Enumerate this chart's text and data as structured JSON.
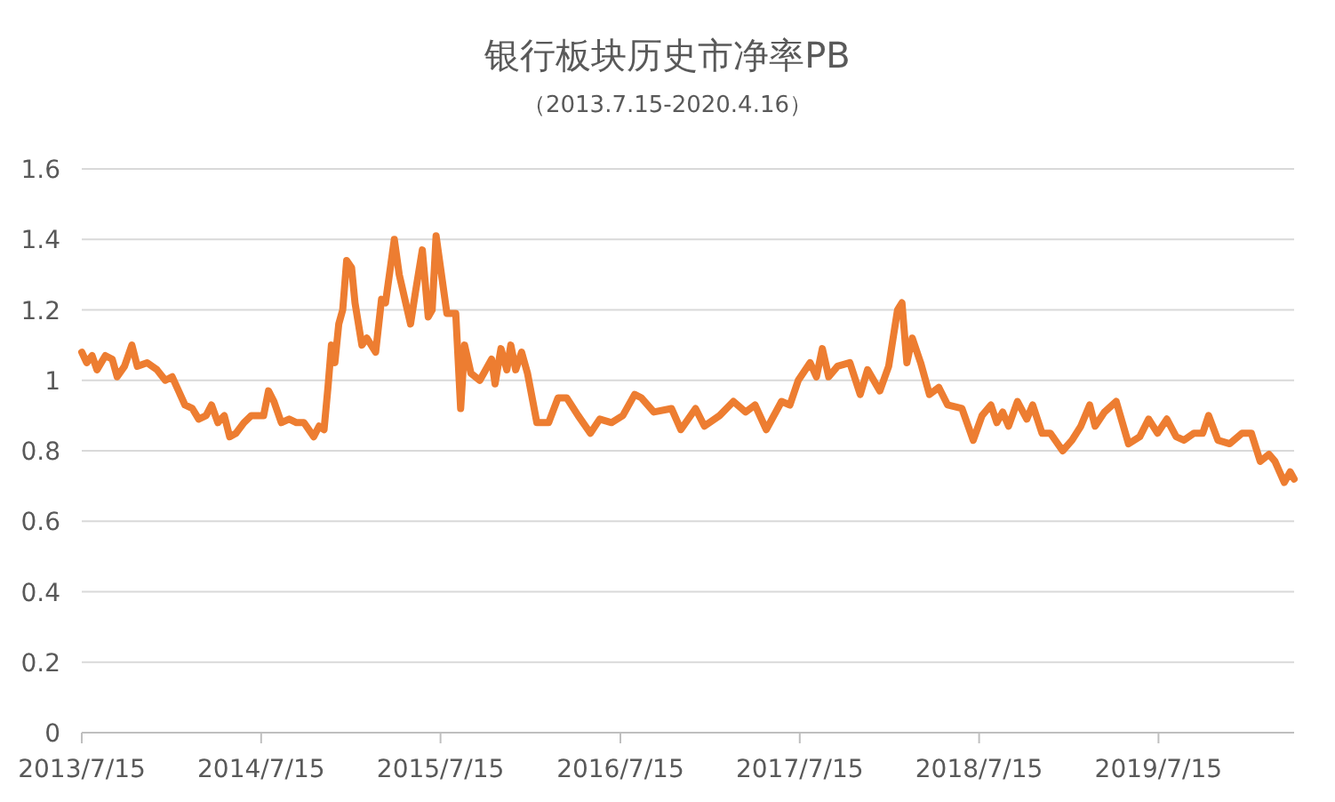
{
  "chart_data": {
    "type": "line",
    "title": "银行板块历史市净率PB",
    "subtitle": "（2013.7.15-2020.4.16）",
    "x": [
      "2013-07-15",
      "2013-07-25",
      "2013-08-05",
      "2013-08-15",
      "2013-09-01",
      "2013-09-15",
      "2013-09-25",
      "2013-10-10",
      "2013-10-25",
      "2013-11-05",
      "2013-11-25",
      "2013-12-15",
      "2014-01-01",
      "2014-01-15",
      "2014-01-28",
      "2014-02-10",
      "2014-02-25",
      "2014-03-10",
      "2014-03-25",
      "2014-04-05",
      "2014-04-18",
      "2014-05-01",
      "2014-05-12",
      "2014-05-25",
      "2014-06-10",
      "2014-06-25",
      "2014-07-20",
      "2014-07-30",
      "2014-08-10",
      "2014-08-25",
      "2014-09-10",
      "2014-09-25",
      "2014-10-10",
      "2014-10-30",
      "2014-11-10",
      "2014-11-20",
      "2014-11-28",
      "2014-12-05",
      "2014-12-12",
      "2014-12-20",
      "2014-12-28",
      "2015-01-05",
      "2015-01-15",
      "2015-01-22",
      "2015-02-05",
      "2015-02-15",
      "2015-03-05",
      "2015-03-17",
      "2015-03-25",
      "2015-04-12",
      "2015-04-22",
      "2015-05-15",
      "2015-05-25",
      "2015-06-08",
      "2015-06-20",
      "2015-06-28",
      "2015-07-06",
      "2015-07-28",
      "2015-08-15",
      "2015-08-25",
      "2015-09-02",
      "2015-09-15",
      "2015-10-03",
      "2015-10-27",
      "2015-11-03",
      "2015-11-15",
      "2015-11-27",
      "2015-12-05",
      "2015-12-15",
      "2015-12-27",
      "2016-01-08",
      "2016-01-27",
      "2016-02-20",
      "2016-03-10",
      "2016-03-28",
      "2016-04-20",
      "2016-05-15",
      "2016-06-03",
      "2016-06-27",
      "2016-07-20",
      "2016-08-13",
      "2016-08-27",
      "2016-09-21",
      "2016-10-27",
      "2016-11-15",
      "2016-12-15",
      "2017-01-02",
      "2017-02-02",
      "2017-03-02",
      "2017-03-27",
      "2017-04-15",
      "2017-05-08",
      "2017-06-08",
      "2017-06-25",
      "2017-07-12",
      "2017-08-05",
      "2017-08-18",
      "2017-08-30",
      "2017-09-12",
      "2017-09-30",
      "2017-10-25",
      "2017-11-15",
      "2017-11-30",
      "2017-12-25",
      "2018-01-12",
      "2018-01-30",
      "2018-02-08",
      "2018-02-18",
      "2018-03-01",
      "2018-03-18",
      "2018-04-05",
      "2018-04-24",
      "2018-05-12",
      "2018-06-10",
      "2018-07-03",
      "2018-07-21",
      "2018-08-08",
      "2018-08-20",
      "2018-09-01",
      "2018-09-13",
      "2018-10-01",
      "2018-10-20",
      "2018-11-01",
      "2018-11-20",
      "2018-12-07",
      "2019-01-01",
      "2019-01-20",
      "2019-02-07",
      "2019-02-25",
      "2019-03-08",
      "2019-03-27",
      "2019-04-20",
      "2019-05-15",
      "2019-06-07",
      "2019-06-25",
      "2019-07-13",
      "2019-08-01",
      "2019-08-20",
      "2019-09-05",
      "2019-09-25",
      "2019-10-13",
      "2019-10-25",
      "2019-11-13",
      "2019-12-07",
      "2020-01-01",
      "2020-01-20",
      "2020-02-07",
      "2020-02-25",
      "2020-03-08",
      "2020-03-27",
      "2020-04-08",
      "2020-04-16"
    ],
    "values": [
      1.08,
      1.05,
      1.07,
      1.03,
      1.07,
      1.06,
      1.01,
      1.04,
      1.1,
      1.04,
      1.05,
      1.03,
      1.0,
      1.01,
      0.97,
      0.93,
      0.92,
      0.89,
      0.9,
      0.93,
      0.88,
      0.9,
      0.84,
      0.85,
      0.88,
      0.9,
      0.9,
      0.97,
      0.94,
      0.88,
      0.89,
      0.88,
      0.88,
      0.84,
      0.87,
      0.86,
      0.98,
      1.1,
      1.05,
      1.16,
      1.2,
      1.34,
      1.32,
      1.22,
      1.1,
      1.12,
      1.08,
      1.23,
      1.22,
      1.4,
      1.3,
      1.16,
      1.25,
      1.37,
      1.18,
      1.2,
      1.41,
      1.19,
      1.19,
      0.92,
      1.1,
      1.02,
      1.0,
      1.06,
      0.99,
      1.09,
      1.03,
      1.1,
      1.03,
      1.08,
      1.02,
      0.88,
      0.88,
      0.95,
      0.95,
      0.9,
      0.85,
      0.89,
      0.88,
      0.9,
      0.96,
      0.95,
      0.91,
      0.92,
      0.86,
      0.92,
      0.87,
      0.9,
      0.94,
      0.91,
      0.93,
      0.86,
      0.94,
      0.93,
      1.0,
      1.05,
      1.01,
      1.09,
      1.01,
      1.04,
      1.05,
      0.96,
      1.03,
      0.97,
      1.04,
      1.2,
      1.22,
      1.05,
      1.12,
      1.05,
      0.96,
      0.98,
      0.93,
      0.92,
      0.83,
      0.9,
      0.93,
      0.88,
      0.91,
      0.87,
      0.94,
      0.89,
      0.93,
      0.85,
      0.85,
      0.8,
      0.83,
      0.87,
      0.93,
      0.87,
      0.91,
      0.94,
      0.82,
      0.84,
      0.89,
      0.85,
      0.89,
      0.84,
      0.83,
      0.85,
      0.85,
      0.9,
      0.83,
      0.82,
      0.85,
      0.85,
      0.77,
      0.79,
      0.77,
      0.71,
      0.74,
      0.72
    ],
    "color": "#ed7d31",
    "xlim": [
      "2013-07-15",
      "2020-04-16"
    ],
    "xticks": [
      {
        "value": "2013-07-15",
        "label": "2013/7/15"
      },
      {
        "value": "2014-07-15",
        "label": "2014/7/15"
      },
      {
        "value": "2015-07-15",
        "label": "2015/7/15"
      },
      {
        "value": "2016-07-15",
        "label": "2016/7/15"
      },
      {
        "value": "2017-07-15",
        "label": "2017/7/15"
      },
      {
        "value": "2018-07-15",
        "label": "2018/7/15"
      },
      {
        "value": "2019-07-15",
        "label": "2019/7/15"
      }
    ],
    "ylim": [
      0,
      1.6
    ],
    "yticks": [
      {
        "value": 0,
        "label": "0"
      },
      {
        "value": 0.2,
        "label": "0.2"
      },
      {
        "value": 0.4,
        "label": "0.4"
      },
      {
        "value": 0.6,
        "label": "0.6"
      },
      {
        "value": 0.8,
        "label": "0.8"
      },
      {
        "value": 1,
        "label": "1"
      },
      {
        "value": 1.2,
        "label": "1.2"
      },
      {
        "value": 1.4,
        "label": "1.4"
      },
      {
        "value": 1.6,
        "label": "1.6"
      }
    ],
    "grid": "y"
  }
}
